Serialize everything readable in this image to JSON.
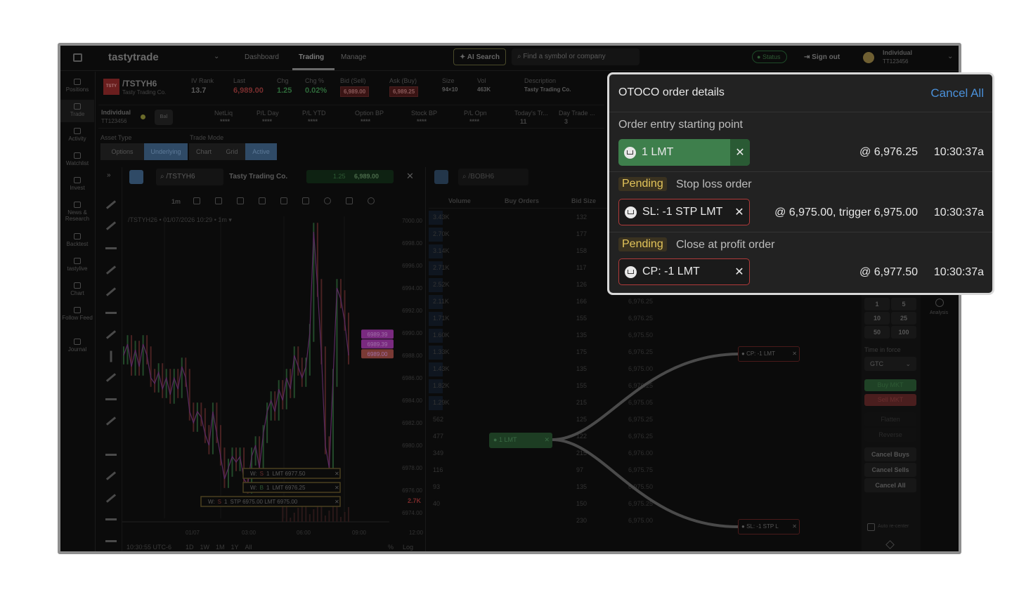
{
  "topbar": {
    "brand": "tastytrade",
    "tabs": [
      "Dashboard",
      "Trading",
      "Manage"
    ],
    "active_tab": "Trading",
    "ai_search": "AI Search",
    "search_placeholder": "Find a symbol or company",
    "status": "Status",
    "sign_out": "Sign out",
    "account_name": "Individual",
    "account_id": "TT123456"
  },
  "sidebar": [
    "Positions",
    "Trade",
    "Activity",
    "Watchlist",
    "Invest",
    "News & Research",
    "Backtest",
    "tastylive",
    "Chart",
    "Follow Feed",
    "Journal"
  ],
  "quote": {
    "logo": "TSTY",
    "symbol": "/TSTYH6",
    "company": "Tasty Trading Co.",
    "fields": [
      {
        "label": "IV Rank",
        "value": "13.7",
        "color": "#5a5a5a"
      },
      {
        "label": "Last",
        "value": "6,989.00",
        "color": "#7a2e2e"
      },
      {
        "label": "Chg",
        "value": "1.25",
        "color": "#2e6a3a"
      },
      {
        "label": "Chg %",
        "value": "0.02%",
        "color": "#2e6a3a"
      },
      {
        "label": "Bid (Sell)",
        "value": "6,989.00",
        "color": "#8a5a5a"
      },
      {
        "label": "Ask (Buy)",
        "value": "6,989.25",
        "color": "#8a5a5a"
      },
      {
        "label": "Size",
        "value": "94×10",
        "color": "#5a5a5a"
      },
      {
        "label": "Vol",
        "value": "463K",
        "color": "#5a5a5a"
      },
      {
        "label": "Description",
        "value": "Tasty Trading Co.",
        "color": "#5a5a5a"
      }
    ]
  },
  "account": {
    "name": "Individual",
    "id": "TT123456",
    "bal": "Bal",
    "fields": [
      {
        "label": "NetLiq",
        "value": "****"
      },
      {
        "label": "P/L Day",
        "value": "****"
      },
      {
        "label": "P/L YTD",
        "value": "****"
      },
      {
        "label": "Option BP",
        "value": "****"
      },
      {
        "label": "Stock BP",
        "value": "****"
      },
      {
        "label": "P/L Opn",
        "value": "****"
      },
      {
        "label": "Today's Tr...",
        "value": "11"
      },
      {
        "label": "Day Trade ...",
        "value": "3"
      }
    ]
  },
  "asset_type": {
    "label": "Asset Type",
    "options": [
      "Options",
      "Underlying"
    ],
    "selected": "Underlying"
  },
  "trade_mode": {
    "label": "Trade Mode",
    "options": [
      "Chart",
      "Grid",
      "Active"
    ],
    "selected": "Active"
  },
  "chart_panel": {
    "symbol": "/TSTYH6",
    "company": "Tasty Trading Co.",
    "change": "1.25",
    "price": "6,989.00",
    "interval": "1m",
    "legend": "/TSTYH26 • 01/07/2026 10:29 • 1m ▾",
    "y_ticks": [
      "7000.00",
      "6998.00",
      "6996.00",
      "6994.00",
      "6992.00",
      "6990.00",
      "6988.00",
      "6986.00",
      "6984.00",
      "6982.00",
      "6980.00",
      "6978.00",
      "6976.00",
      "6974.00"
    ],
    "x_ticks": [
      "01/07",
      "03:00",
      "06:00",
      "09:00",
      "12:00"
    ],
    "price_tags": [
      {
        "text": "6989.39",
        "color": "#7a2a80"
      },
      {
        "text": "6989.39",
        "color": "#7a2a80"
      },
      {
        "text": "6989.00",
        "color": "#7a3a35"
      }
    ],
    "volume_label": "2.7K",
    "orders": [
      {
        "w": "W:",
        "side": "S",
        "qty": "1",
        "desc": "LMT 6977.50"
      },
      {
        "w": "W:",
        "side": "B",
        "qty": "1",
        "desc": "LMT 6976.25"
      },
      {
        "w": "W:",
        "side": "S",
        "qty": "1",
        "desc": "STP 6975.00 LMT 6975.00"
      }
    ],
    "footer": {
      "time": "10:30:55 UTC-6",
      "ranges": [
        "1D",
        "1W",
        "1M",
        "1Y",
        "All"
      ],
      "pct": "%",
      "log": "Log"
    },
    "series": [
      6988,
      6989,
      6987,
      6988.5,
      6987,
      6989,
      6988,
      6986,
      6985.5,
      6986.5,
      6985,
      6986,
      6984.5,
      6986,
      6985,
      6987,
      6986,
      6983,
      6982,
      6983,
      6982.5,
      6981,
      6980,
      6983,
      6981,
      6979,
      6977,
      6978,
      6979,
      6978.5,
      6979,
      6977,
      6976.5,
      6979,
      6980,
      6978,
      6981,
      6983,
      6984,
      6983,
      6985,
      6984,
      6986,
      6985,
      6988,
      6987,
      6986,
      6987,
      6990,
      6999,
      6994,
      6988,
      6980,
      6978,
      6986,
      6994,
      6993,
      6991,
      6988
    ]
  },
  "order_book": {
    "symbol": "/BOBH6",
    "columns": [
      "Volume",
      "Buy Orders",
      "Bid Size"
    ],
    "volumes": [
      "3.43K",
      "2.70K",
      "3.14K",
      "2.71K",
      "2.52K",
      "2.11K",
      "1.71K",
      "1.60K",
      "1.33K",
      "1.43K",
      "1.82K",
      "1.29K",
      "562",
      "477",
      "349",
      "116",
      "93",
      "40",
      ""
    ],
    "bid_sizes": [
      "132",
      "177",
      "158",
      "117",
      "126",
      "166",
      "155",
      "135",
      "175",
      "135",
      "155",
      "215",
      "125",
      "122",
      "215",
      "97",
      "135",
      "150",
      "230"
    ],
    "prices": [
      "",
      "",
      "",
      "",
      "",
      "6,976.25",
      "6,976.25",
      "6,975.50",
      "6,976.25",
      "6,975.00",
      "6,976.25",
      "6,975.05",
      "6,975.25",
      "6,976.25",
      "6,976.00",
      "6,975.75",
      "6,975.50",
      "6,975.25",
      "6,975.00"
    ],
    "entry_node": "1 LMT",
    "cp_node": "CP: -1 LMT",
    "sl_node": "SL: -1 STP L"
  },
  "right_panel": {
    "quantities": [
      "1",
      "5",
      "10",
      "25",
      "50",
      "100"
    ],
    "tif_label": "Time in force",
    "tif_value": "GTC",
    "buy": "Buy MKT",
    "sell": "Sell MKT",
    "flatten": "Flatten",
    "reverse": "Reverse",
    "cancel_buys": "Cancel Buys",
    "cancel_sells": "Cancel Sells",
    "cancel_all": "Cancel All",
    "auto_recenter": "Auto re-center",
    "analysis": "Analysis"
  },
  "popup": {
    "title": "OTOCO order details",
    "cancel_all": "Cancel All",
    "entry_label": "Order entry starting point",
    "entry": {
      "label": "1 LMT",
      "price": "@ 6,976.25",
      "time": "10:30:37a"
    },
    "stop": {
      "status": "Pending",
      "label": "Stop loss order",
      "order": "SL: -1 STP LMT",
      "price": "@ 6,975.00, trigger 6,975.00",
      "time": "10:30:37a"
    },
    "profit": {
      "status": "Pending",
      "label": "Close at profit order",
      "order": "CP: -1 LMT",
      "price": "@ 6,977.50",
      "time": "10:30:37a"
    },
    "colors": {
      "accent": "#4a90d9",
      "green": "#3e7f4c",
      "red": "#b03a3a",
      "pending": "#e3c45a"
    }
  }
}
